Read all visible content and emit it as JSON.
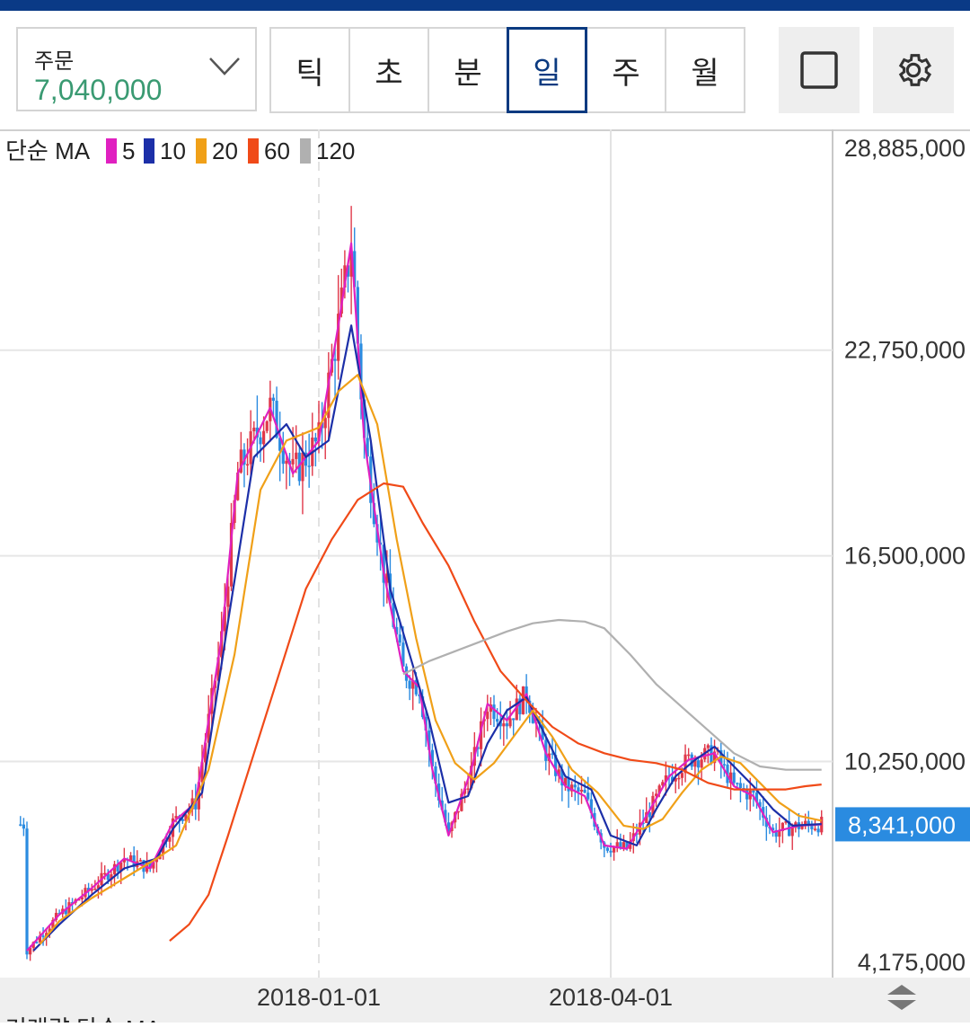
{
  "header": {
    "order_label": "주문",
    "order_value": "7,040,000",
    "tabs": [
      {
        "label": "틱",
        "active": false
      },
      {
        "label": "초",
        "active": false
      },
      {
        "label": "분",
        "active": false
      },
      {
        "label": "일",
        "active": true
      },
      {
        "label": "주",
        "active": false
      },
      {
        "label": "월",
        "active": false
      }
    ],
    "square_icon": "square-icon",
    "settings_icon": "gear-icon"
  },
  "colors": {
    "accent": "#0a3a86",
    "order_value": "#3a9a72",
    "candle_up": "#e0384a",
    "candle_down": "#2a8be0",
    "ma5": "#e020c0",
    "ma10": "#1c2fa8",
    "ma20": "#f0a018",
    "ma60": "#f04a18",
    "ma120": "#b0b0b0",
    "price_tag": "#2a8be0"
  },
  "chart_data": {
    "type": "line",
    "legend": {
      "title": "단순 MA",
      "items": [
        {
          "period": "5",
          "color": "#e020c0"
        },
        {
          "period": "10",
          "color": "#1c2fa8"
        },
        {
          "period": "20",
          "color": "#f0a018"
        },
        {
          "period": "60",
          "color": "#f04a18"
        },
        {
          "period": "120",
          "color": "#b0b0b0"
        }
      ]
    },
    "y_ticks": [
      "28,885,000",
      "22,750,000",
      "16,500,000",
      "10,250,000",
      "4,175,000"
    ],
    "y_tick_values": [
      28885000,
      22750000,
      16500000,
      10250000,
      4175000
    ],
    "ylim": [
      4175000,
      28885000
    ],
    "x_ticks": [
      "2018-01-01",
      "2018-04-01"
    ],
    "x_tick_positions_day": [
      0,
      90
    ],
    "xlim_day": [
      -98,
      172
    ],
    "current_price": "8,341,000",
    "current_price_value": 8341000,
    "series": [
      {
        "name": "5",
        "points": [
          [
            -90,
            4500000
          ],
          [
            -80,
            5600000
          ],
          [
            -70,
            6400000
          ],
          [
            -60,
            7300000
          ],
          [
            -52,
            7000000
          ],
          [
            -45,
            8400000
          ],
          [
            -38,
            9000000
          ],
          [
            -30,
            14000000
          ],
          [
            -25,
            19000000
          ],
          [
            -15,
            21000000
          ],
          [
            -8,
            19000000
          ],
          [
            0,
            20000000
          ],
          [
            6,
            23500000
          ],
          [
            10,
            26000000
          ],
          [
            14,
            20000000
          ],
          [
            20,
            16000000
          ],
          [
            26,
            13000000
          ],
          [
            31,
            12500000
          ],
          [
            35,
            10000000
          ],
          [
            40,
            8000000
          ],
          [
            47,
            10000000
          ],
          [
            52,
            12000000
          ],
          [
            58,
            11500000
          ],
          [
            64,
            12300000
          ],
          [
            70,
            10500000
          ],
          [
            76,
            9500000
          ],
          [
            82,
            9200000
          ],
          [
            88,
            7700000
          ],
          [
            95,
            7600000
          ],
          [
            101,
            8600000
          ],
          [
            108,
            9800000
          ],
          [
            114,
            10300000
          ],
          [
            122,
            10500000
          ],
          [
            128,
            9500000
          ],
          [
            134,
            9200000
          ],
          [
            140,
            8100000
          ],
          [
            148,
            8300000
          ],
          [
            155,
            8340000
          ]
        ]
      },
      {
        "name": "10",
        "points": [
          [
            -88,
            4500000
          ],
          [
            -80,
            5300000
          ],
          [
            -70,
            6200000
          ],
          [
            -60,
            7000000
          ],
          [
            -50,
            7300000
          ],
          [
            -45,
            8200000
          ],
          [
            -36,
            9300000
          ],
          [
            -28,
            14500000
          ],
          [
            -20,
            19500000
          ],
          [
            -10,
            20500000
          ],
          [
            -4,
            19500000
          ],
          [
            3,
            20000000
          ],
          [
            10,
            23500000
          ],
          [
            16,
            20000000
          ],
          [
            22,
            15500000
          ],
          [
            28,
            13500000
          ],
          [
            34,
            11500000
          ],
          [
            40,
            9000000
          ],
          [
            46,
            9200000
          ],
          [
            52,
            10800000
          ],
          [
            58,
            11800000
          ],
          [
            64,
            12200000
          ],
          [
            70,
            11000000
          ],
          [
            76,
            9800000
          ],
          [
            84,
            9400000
          ],
          [
            90,
            8000000
          ],
          [
            98,
            7700000
          ],
          [
            104,
            8800000
          ],
          [
            110,
            9800000
          ],
          [
            116,
            10300000
          ],
          [
            122,
            10700000
          ],
          [
            128,
            10100000
          ],
          [
            134,
            9500000
          ],
          [
            140,
            8800000
          ],
          [
            146,
            8300000
          ],
          [
            155,
            8350000
          ]
        ]
      },
      {
        "name": "20",
        "points": [
          [
            -86,
            4700000
          ],
          [
            -80,
            5400000
          ],
          [
            -70,
            6100000
          ],
          [
            -60,
            6700000
          ],
          [
            -50,
            7300000
          ],
          [
            -44,
            7700000
          ],
          [
            -34,
            10000000
          ],
          [
            -26,
            13500000
          ],
          [
            -18,
            18500000
          ],
          [
            -10,
            20000000
          ],
          [
            0,
            20400000
          ],
          [
            6,
            21500000
          ],
          [
            12,
            22000000
          ],
          [
            18,
            20500000
          ],
          [
            24,
            17000000
          ],
          [
            30,
            14000000
          ],
          [
            36,
            11500000
          ],
          [
            42,
            10200000
          ],
          [
            48,
            9700000
          ],
          [
            54,
            10200000
          ],
          [
            60,
            11000000
          ],
          [
            66,
            11800000
          ],
          [
            72,
            11000000
          ],
          [
            78,
            10000000
          ],
          [
            86,
            9300000
          ],
          [
            94,
            8300000
          ],
          [
            100,
            8200000
          ],
          [
            106,
            8500000
          ],
          [
            112,
            9300000
          ],
          [
            118,
            10000000
          ],
          [
            124,
            10400000
          ],
          [
            130,
            10200000
          ],
          [
            136,
            9600000
          ],
          [
            142,
            9000000
          ],
          [
            148,
            8600000
          ],
          [
            155,
            8450000
          ]
        ]
      },
      {
        "name": "60",
        "points": [
          [
            -46,
            4800000
          ],
          [
            -40,
            5300000
          ],
          [
            -34,
            6200000
          ],
          [
            -28,
            8000000
          ],
          [
            -20,
            10500000
          ],
          [
            -12,
            13000000
          ],
          [
            -4,
            15500000
          ],
          [
            4,
            17000000
          ],
          [
            12,
            18200000
          ],
          [
            20,
            18700000
          ],
          [
            26,
            18600000
          ],
          [
            32,
            17500000
          ],
          [
            40,
            16200000
          ],
          [
            48,
            14500000
          ],
          [
            56,
            13000000
          ],
          [
            64,
            12100000
          ],
          [
            72,
            11300000
          ],
          [
            80,
            10800000
          ],
          [
            88,
            10500000
          ],
          [
            96,
            10300000
          ],
          [
            104,
            10200000
          ],
          [
            112,
            10000000
          ],
          [
            120,
            9600000
          ],
          [
            128,
            9400000
          ],
          [
            136,
            9400000
          ],
          [
            144,
            9400000
          ],
          [
            150,
            9500000
          ],
          [
            155,
            9550000
          ]
        ]
      },
      {
        "name": "120",
        "points": [
          [
            26,
            12900000
          ],
          [
            34,
            13300000
          ],
          [
            42,
            13600000
          ],
          [
            50,
            13900000
          ],
          [
            58,
            14200000
          ],
          [
            66,
            14450000
          ],
          [
            74,
            14550000
          ],
          [
            82,
            14500000
          ],
          [
            88,
            14300000
          ],
          [
            96,
            13500000
          ],
          [
            104,
            12600000
          ],
          [
            112,
            11900000
          ],
          [
            120,
            11200000
          ],
          [
            128,
            10500000
          ],
          [
            136,
            10100000
          ],
          [
            144,
            10000000
          ],
          [
            150,
            10000000
          ],
          [
            155,
            10000000
          ]
        ]
      }
    ]
  },
  "footer": {
    "next_indicator_label": "거래량 단순 MA",
    "scroll_icon": "scroll-arrows-icon"
  }
}
